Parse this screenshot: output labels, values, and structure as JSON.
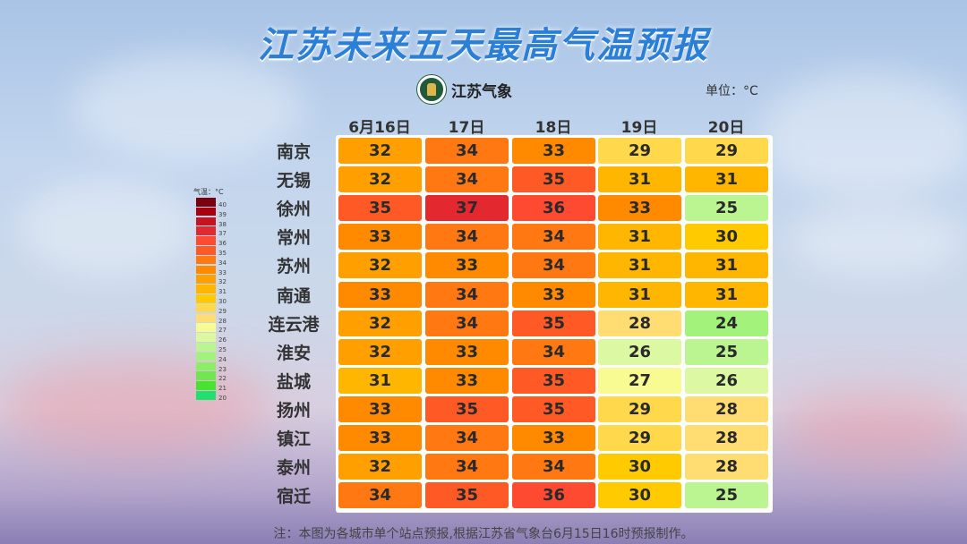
{
  "title": "江苏未来五天最高气温预报",
  "logo_text": "江苏气象",
  "unit_label": "单位：°C",
  "footer": "注：本图为各城市单个站点预报,根据江苏省气象台6月15日16时预报制作。",
  "chart_data": {
    "type": "heatmap",
    "title": "江苏未来五天最高气温预报",
    "columns": [
      "6月16日",
      "17日",
      "18日",
      "19日",
      "20日"
    ],
    "rows": [
      "南京",
      "无锡",
      "徐州",
      "常州",
      "苏州",
      "南通",
      "连云港",
      "淮安",
      "盐城",
      "扬州",
      "镇江",
      "泰州",
      "宿迁"
    ],
    "values": [
      [
        32,
        34,
        33,
        29,
        29
      ],
      [
        32,
        34,
        35,
        31,
        31
      ],
      [
        35,
        37,
        36,
        33,
        25
      ],
      [
        33,
        34,
        34,
        31,
        30
      ],
      [
        32,
        33,
        34,
        31,
        31
      ],
      [
        33,
        34,
        33,
        31,
        31
      ],
      [
        32,
        34,
        35,
        28,
        24
      ],
      [
        32,
        33,
        34,
        26,
        25
      ],
      [
        31,
        33,
        35,
        27,
        26
      ],
      [
        33,
        35,
        35,
        29,
        28
      ],
      [
        33,
        34,
        33,
        29,
        28
      ],
      [
        32,
        34,
        34,
        30,
        28
      ],
      [
        34,
        35,
        36,
        30,
        25
      ]
    ],
    "unit": "°C",
    "legend": {
      "title": "气温：°C",
      "levels": [
        40,
        39,
        38,
        37,
        36,
        35,
        34,
        33,
        32,
        31,
        30,
        29,
        28,
        27,
        26,
        25,
        24,
        23,
        22,
        21,
        20
      ],
      "colors": {
        "40": "#7a0010",
        "39": "#a8000f",
        "38": "#c9121f",
        "37": "#e42830",
        "36": "#ff4a32",
        "35": "#ff5a26",
        "34": "#ff7812",
        "33": "#ff8a00",
        "32": "#ffa000",
        "31": "#ffb600",
        "30": "#ffcb00",
        "29": "#ffd84c",
        "28": "#ffdd72",
        "27": "#f7fb92",
        "26": "#dcf8a2",
        "25": "#baf592",
        "24": "#a2f27c",
        "23": "#8cee66",
        "22": "#6ee84e",
        "21": "#48e232",
        "20": "#20e070"
      }
    }
  }
}
